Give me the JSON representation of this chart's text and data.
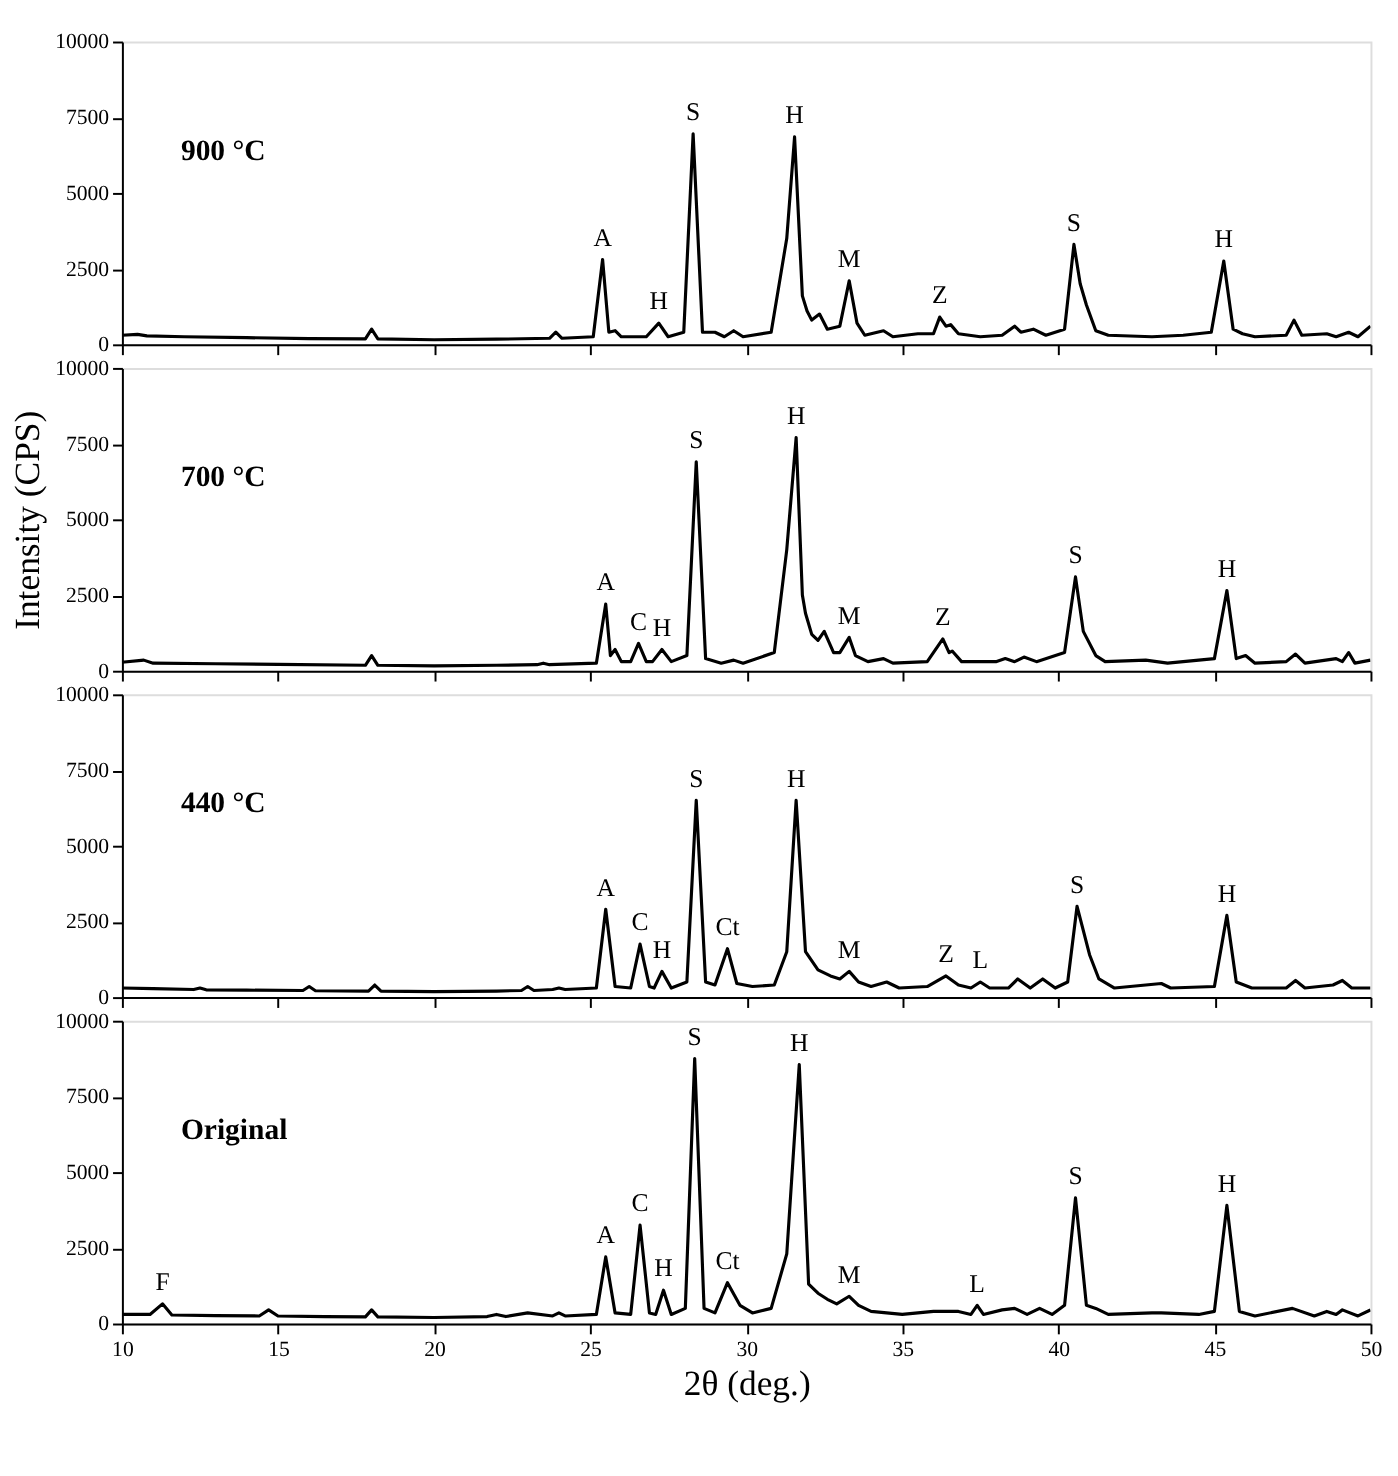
{
  "chart_data": [
    {
      "type": "line",
      "title": "900 °C",
      "ylabel": null,
      "tick_labels": "y",
      "grid": false,
      "line_style": "solid",
      "xlim": [
        10,
        50
      ],
      "xticks": [
        10,
        15,
        20,
        25,
        30,
        35,
        40,
        45,
        50
      ],
      "ylim": [
        0,
        10000
      ],
      "yticks": [
        0,
        2500,
        5000,
        7500,
        10000
      ],
      "x": [
        10,
        10.5,
        10.8,
        12,
        14,
        16,
        17.8,
        18.0,
        18.2,
        20,
        22,
        23.7,
        23.9,
        24.1,
        25.1,
        25.4,
        25.6,
        25.8,
        26.0,
        26.8,
        27.2,
        27.5,
        28.0,
        28.3,
        28.6,
        29.0,
        29.3,
        29.6,
        29.9,
        30.8,
        31.3,
        31.55,
        31.8,
        31.95,
        32.1,
        32.35,
        32.6,
        33.0,
        33.3,
        33.55,
        33.8,
        34.4,
        34.7,
        35.5,
        36.0,
        36.2,
        36.4,
        36.55,
        36.8,
        37.5,
        38.2,
        38.6,
        38.8,
        39.2,
        39.6,
        40.2,
        40.5,
        40.7,
        40.9,
        41.2,
        41.6,
        43,
        44,
        44.9,
        45.3,
        45.6,
        45.9,
        46.3,
        47.3,
        47.55,
        47.8,
        48.6,
        48.9,
        49.3,
        49.6,
        50
      ],
      "series": [
        {
          "color": "#000000",
          "values": [
            300,
            330,
            280,
            250,
            220,
            190,
            180,
            500,
            180,
            150,
            170,
            200,
            400,
            200,
            250,
            2800,
            400,
            450,
            250,
            250,
            700,
            250,
            400,
            6950,
            400,
            400,
            250,
            450,
            250,
            400,
            3500,
            6850,
            1600,
            1100,
            800,
            1000,
            500,
            600,
            2100,
            700,
            300,
            450,
            250,
            350,
            350,
            900,
            600,
            650,
            350,
            250,
            300,
            600,
            400,
            500,
            300,
            500,
            3300,
            2000,
            1300,
            450,
            300,
            250,
            300,
            400,
            2750,
            500,
            350,
            250,
            300,
            800,
            300,
            350,
            250,
            400,
            250,
            600
          ]
        }
      ],
      "annotations": [
        {
          "text": "A",
          "x": 25.4,
          "y": 2800
        },
        {
          "text": "H",
          "x": 27.2,
          "y": 700
        },
        {
          "text": "S",
          "x": 28.3,
          "y": 6950
        },
        {
          "text": "H",
          "x": 31.55,
          "y": 6850
        },
        {
          "text": "M",
          "x": 33.3,
          "y": 2100
        },
        {
          "text": "Z",
          "x": 36.2,
          "y": 900
        },
        {
          "text": "S",
          "x": 40.5,
          "y": 3300
        },
        {
          "text": "H",
          "x": 45.3,
          "y": 2750
        }
      ]
    },
    {
      "type": "line",
      "title": "700 °C",
      "ylabel": "Intensity (CPS)",
      "tick_labels": "y",
      "grid": false,
      "line_style": "solid",
      "xlim": [
        10,
        50
      ],
      "xticks": [
        10,
        15,
        20,
        25,
        30,
        35,
        40,
        45,
        50
      ],
      "ylim": [
        0,
        10000
      ],
      "yticks": [
        0,
        2500,
        5000,
        7500,
        10000
      ],
      "x": [
        10,
        10.7,
        11.0,
        13,
        15,
        17.8,
        18.0,
        18.2,
        20,
        22,
        23.3,
        23.5,
        23.7,
        25.2,
        25.5,
        25.65,
        25.8,
        26.0,
        26.3,
        26.55,
        26.8,
        27.0,
        27.3,
        27.6,
        28.1,
        28.4,
        28.7,
        29.2,
        29.6,
        29.9,
        30.9,
        31.3,
        31.6,
        31.8,
        31.9,
        32.1,
        32.3,
        32.5,
        32.8,
        33.0,
        33.3,
        33.5,
        33.6,
        33.9,
        34.4,
        34.7,
        35.8,
        36.3,
        36.5,
        36.6,
        36.9,
        38.0,
        38.3,
        38.6,
        38.9,
        39.3,
        40.2,
        40.55,
        40.8,
        41.2,
        41.5,
        42.8,
        43.5,
        45.0,
        45.4,
        45.7,
        46.0,
        46.3,
        47.3,
        47.6,
        47.9,
        48.9,
        49.1,
        49.3,
        49.5,
        50
      ],
      "series": [
        {
          "color": "#000000",
          "values": [
            280,
            350,
            250,
            230,
            210,
            180,
            500,
            180,
            160,
            180,
            200,
            250,
            200,
            250,
            2200,
            500,
            700,
            300,
            300,
            900,
            300,
            300,
            700,
            300,
            500,
            6900,
            400,
            250,
            350,
            250,
            600,
            4000,
            7700,
            2500,
            1900,
            1200,
            1000,
            1300,
            600,
            600,
            1100,
            500,
            450,
            300,
            400,
            250,
            300,
            1050,
            600,
            650,
            300,
            300,
            400,
            300,
            450,
            300,
            600,
            3100,
            1300,
            500,
            300,
            350,
            250,
            400,
            2650,
            400,
            500,
            250,
            300,
            550,
            250,
            400,
            300,
            600,
            250,
            350
          ]
        }
      ],
      "annotations": [
        {
          "text": "A",
          "x": 25.5,
          "y": 2200
        },
        {
          "text": "C",
          "x": 26.55,
          "y": 900
        },
        {
          "text": "H",
          "x": 27.3,
          "y": 700
        },
        {
          "text": "S",
          "x": 28.4,
          "y": 6900
        },
        {
          "text": "H",
          "x": 31.6,
          "y": 7700
        },
        {
          "text": "M",
          "x": 33.3,
          "y": 1100
        },
        {
          "text": "Z",
          "x": 36.3,
          "y": 1050
        },
        {
          "text": "S",
          "x": 40.55,
          "y": 3100
        },
        {
          "text": "H",
          "x": 45.4,
          "y": 2650
        }
      ]
    },
    {
      "type": "line",
      "title": "440 °C",
      "tick_labels": "y",
      "grid": false,
      "line_style": "solid",
      "xlim": [
        10,
        50
      ],
      "xticks": [
        10,
        15,
        20,
        25,
        30,
        35,
        40,
        45,
        50
      ],
      "ylim": [
        0,
        10000
      ],
      "yticks": [
        0,
        2500,
        5000,
        7500,
        10000
      ],
      "x": [
        10,
        11,
        12.3,
        12.5,
        12.7,
        14,
        15.8,
        16.0,
        16.2,
        17.9,
        18.1,
        18.3,
        20,
        22,
        22.8,
        23.0,
        23.2,
        23.8,
        24.0,
        24.2,
        25.2,
        25.5,
        25.8,
        26.3,
        26.6,
        26.9,
        27.05,
        27.3,
        27.6,
        28.1,
        28.4,
        28.7,
        29.0,
        29.4,
        29.7,
        30.2,
        30.9,
        31.3,
        31.6,
        31.9,
        32.3,
        32.7,
        33.0,
        33.3,
        33.6,
        34.0,
        34.5,
        34.9,
        35.8,
        36.4,
        36.8,
        37.2,
        37.5,
        37.8,
        38.4,
        38.7,
        39.1,
        39.5,
        39.9,
        40.3,
        40.6,
        41.0,
        41.3,
        41.8,
        42.8,
        43.3,
        43.6,
        45.0,
        45.4,
        45.7,
        46.2,
        47.3,
        47.6,
        47.9,
        48.8,
        49.1,
        49.4,
        50
      ],
      "series": [
        {
          "color": "#000000",
          "values": [
            300,
            280,
            250,
            300,
            240,
            230,
            220,
            350,
            210,
            200,
            400,
            200,
            180,
            200,
            220,
            350,
            220,
            250,
            300,
            250,
            300,
            2900,
            350,
            300,
            1750,
            350,
            300,
            850,
            300,
            500,
            6500,
            500,
            400,
            1600,
            450,
            350,
            400,
            1500,
            6500,
            1500,
            900,
            700,
            600,
            850,
            500,
            350,
            500,
            300,
            350,
            700,
            400,
            300,
            500,
            300,
            300,
            600,
            300,
            600,
            300,
            500,
            3000,
            1400,
            600,
            300,
            400,
            450,
            300,
            350,
            2700,
            500,
            300,
            300,
            550,
            300,
            400,
            550,
            300,
            300
          ]
        }
      ],
      "annotations": [
        {
          "text": "A",
          "x": 25.5,
          "y": 2900
        },
        {
          "text": "C",
          "x": 26.6,
          "y": 1750
        },
        {
          "text": "H",
          "x": 27.3,
          "y": 850
        },
        {
          "text": "S",
          "x": 28.4,
          "y": 6500
        },
        {
          "text": "Ct",
          "x": 29.4,
          "y": 1600
        },
        {
          "text": "H",
          "x": 31.6,
          "y": 6500
        },
        {
          "text": "M",
          "x": 33.3,
          "y": 850
        },
        {
          "text": "Z",
          "x": 36.4,
          "y": 700
        },
        {
          "text": "L",
          "x": 37.5,
          "y": 500
        },
        {
          "text": "S",
          "x": 40.6,
          "y": 3000
        },
        {
          "text": "H",
          "x": 45.4,
          "y": 2700
        }
      ]
    },
    {
      "type": "line",
      "title": "Original",
      "xlabel": "2θ (deg.)",
      "grid": false,
      "line_style": "solid",
      "xlim": [
        10,
        50
      ],
      "xticks": [
        10,
        15,
        20,
        25,
        30,
        35,
        40,
        45,
        50
      ],
      "ylim": [
        0,
        10000
      ],
      "yticks": [
        0,
        2500,
        5000,
        7500,
        10000
      ],
      "x": [
        10,
        10.9,
        11.3,
        11.6,
        13,
        14.4,
        14.7,
        15.0,
        16.5,
        17.8,
        18.0,
        18.2,
        20,
        21.7,
        22.0,
        22.3,
        23.0,
        23.8,
        24.0,
        24.2,
        25.2,
        25.5,
        25.8,
        26.3,
        26.6,
        26.9,
        27.1,
        27.35,
        27.6,
        28.05,
        28.35,
        28.65,
        29.0,
        29.4,
        29.8,
        30.2,
        30.8,
        31.3,
        31.7,
        32.0,
        32.3,
        32.6,
        32.9,
        33.3,
        33.6,
        34.0,
        35.0,
        36.0,
        36.8,
        37.2,
        37.4,
        37.6,
        38.2,
        38.6,
        39.0,
        39.4,
        39.8,
        40.2,
        40.55,
        40.9,
        41.2,
        41.6,
        43.0,
        43.3,
        44.5,
        45.0,
        45.4,
        45.8,
        46.3,
        47.5,
        48.2,
        48.6,
        48.9,
        49.1,
        49.6,
        50
      ],
      "series": [
        {
          "color": "#000000",
          "values": [
            300,
            300,
            650,
            280,
            260,
            250,
            450,
            250,
            230,
            220,
            450,
            220,
            200,
            230,
            300,
            230,
            350,
            250,
            350,
            250,
            300,
            2200,
            350,
            300,
            3250,
            350,
            300,
            1100,
            300,
            500,
            8750,
            500,
            350,
            1350,
            600,
            350,
            500,
            2300,
            8550,
            1300,
            1000,
            800,
            650,
            900,
            600,
            400,
            300,
            400,
            400,
            300,
            600,
            300,
            450,
            500,
            300,
            500,
            300,
            600,
            4150,
            600,
            500,
            300,
            350,
            350,
            300,
            400,
            3900,
            400,
            250,
            500,
            250,
            400,
            300,
            450,
            250,
            450
          ]
        }
      ],
      "annotations": [
        {
          "text": "F",
          "x": 11.3,
          "y": 650
        },
        {
          "text": "A",
          "x": 25.5,
          "y": 2200
        },
        {
          "text": "C",
          "x": 26.6,
          "y": 3250
        },
        {
          "text": "H",
          "x": 27.35,
          "y": 1100
        },
        {
          "text": "S",
          "x": 28.35,
          "y": 8750
        },
        {
          "text": "Ct",
          "x": 29.4,
          "y": 1350
        },
        {
          "text": "H",
          "x": 31.7,
          "y": 8550
        },
        {
          "text": "M",
          "x": 33.3,
          "y": 900
        },
        {
          "text": "L",
          "x": 37.4,
          "y": 600
        },
        {
          "text": "S",
          "x": 40.55,
          "y": 4150
        },
        {
          "text": "H",
          "x": 45.4,
          "y": 3900
        }
      ]
    }
  ]
}
